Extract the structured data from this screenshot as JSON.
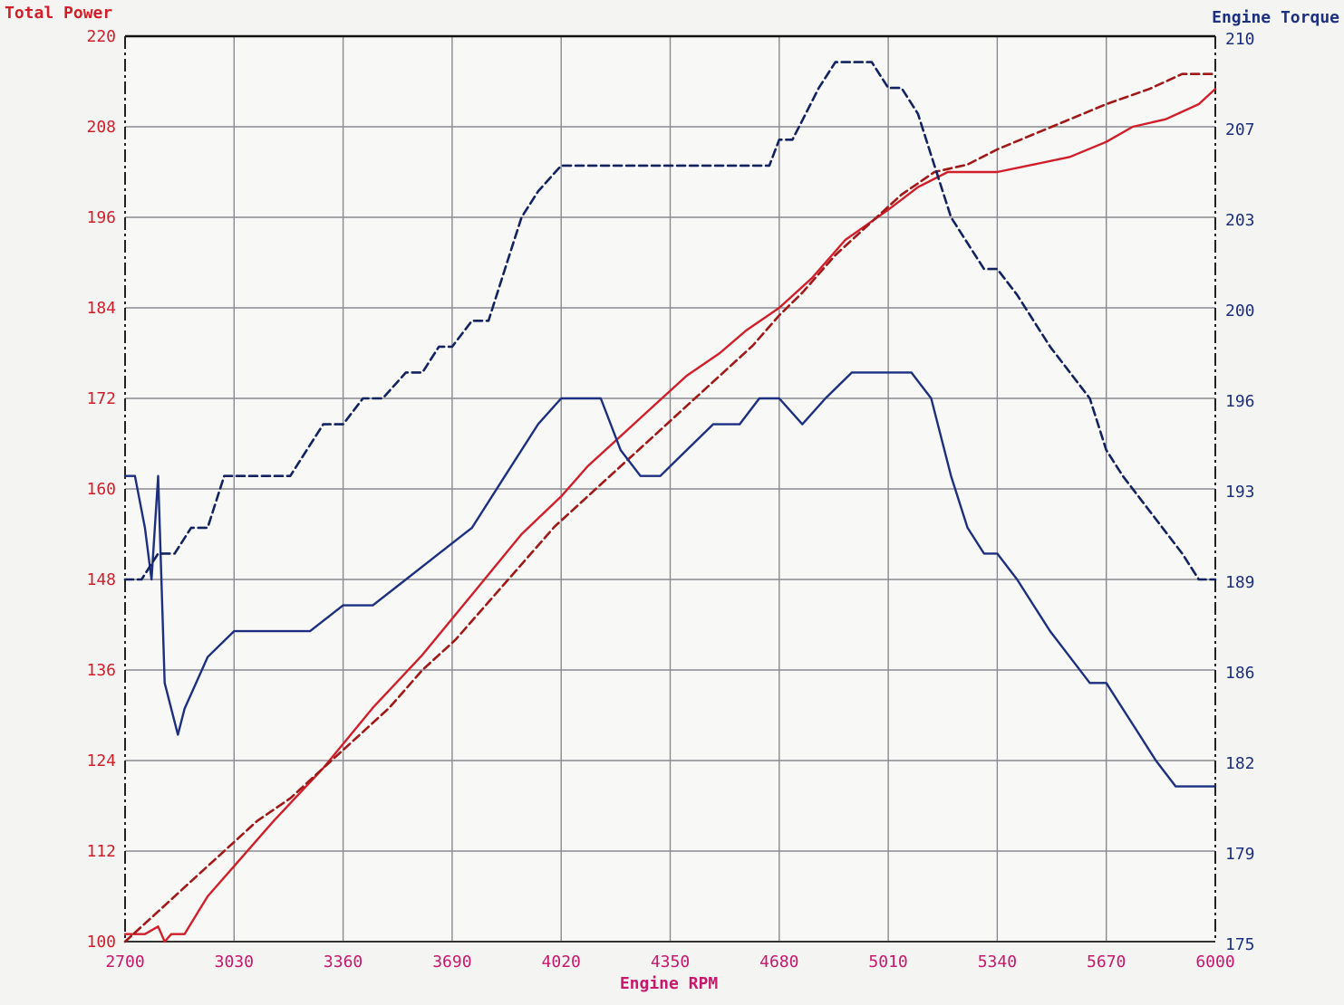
{
  "chart_data": {
    "type": "line",
    "title_left": "Total Power",
    "title_right": "Engine Torque",
    "xlabel": "Engine RPM",
    "x_ticks": [
      "2700",
      "3030",
      "3360",
      "3690",
      "4020",
      "4350",
      "4680",
      "5010",
      "5340",
      "5670",
      "6000"
    ],
    "y_left_ticks": [
      "220",
      "208",
      "196",
      "184",
      "172",
      "160",
      "148",
      "136",
      "124",
      "112",
      "100"
    ],
    "y_right_ticks": [
      "210",
      "207",
      "203",
      "200",
      "196",
      "193",
      "189",
      "186",
      "182",
      "179",
      "175"
    ],
    "xlim": [
      2700,
      6000
    ],
    "y_left_lim": [
      100,
      220
    ],
    "y_right_lim": [
      175,
      210
    ],
    "colors": {
      "power": "#d01e2a",
      "power_dashed": "#a01818",
      "torque": "#1c2f80",
      "torque_dashed": "#13235f",
      "grid": "#8a8a90",
      "background": "#f4f4f2"
    },
    "series": [
      {
        "axis": "left",
        "style": "solid",
        "color": "#d01e2a",
        "x": [
          2700,
          2760,
          2800,
          2820,
          2840,
          2880,
          2950,
          3030,
          3150,
          3300,
          3450,
          3600,
          3750,
          3900,
          4020,
          4100,
          4200,
          4300,
          4400,
          4500,
          4580,
          4680,
          4780,
          4880,
          5010,
          5100,
          5190,
          5250,
          5340,
          5450,
          5560,
          5670,
          5750,
          5850,
          5950,
          6000
        ],
        "y": [
          101,
          101,
          102,
          100,
          101,
          101,
          106,
          110,
          116,
          123,
          131,
          138,
          146,
          154,
          159,
          163,
          167,
          171,
          175,
          178,
          181,
          184,
          188,
          193,
          197,
          200,
          202,
          202,
          202,
          203,
          204,
          206,
          208,
          209,
          211,
          213
        ]
      },
      {
        "axis": "left",
        "style": "dashed",
        "color": "#a01818",
        "x": [
          2700,
          2800,
          2900,
          3000,
          3100,
          3200,
          3300,
          3400,
          3500,
          3600,
          3700,
          3800,
          3900,
          4000,
          4100,
          4200,
          4300,
          4400,
          4500,
          4600,
          4680,
          4750,
          4850,
          4950,
          5050,
          5150,
          5250,
          5340,
          5450,
          5560,
          5670,
          5800,
          5900,
          6000
        ],
        "y": [
          100,
          104,
          108,
          112,
          116,
          119,
          123,
          127,
          131,
          136,
          140,
          145,
          150,
          155,
          159,
          163,
          167,
          171,
          175,
          179,
          183,
          186,
          191,
          195,
          199,
          202,
          203,
          205,
          207,
          209,
          211,
          213,
          215,
          215
        ]
      },
      {
        "axis": "right",
        "style": "solid",
        "color": "#1c2f80",
        "x": [
          2700,
          2730,
          2760,
          2780,
          2800,
          2820,
          2840,
          2860,
          2880,
          2950,
          3030,
          3100,
          3180,
          3260,
          3360,
          3450,
          3550,
          3650,
          3750,
          3850,
          3950,
          4020,
          4080,
          4140,
          4200,
          4260,
          4320,
          4400,
          4480,
          4560,
          4620,
          4680,
          4750,
          4820,
          4900,
          4960,
          5010,
          5080,
          5140,
          5200,
          5250,
          5300,
          5340,
          5400,
          5450,
          5500,
          5560,
          5620,
          5670,
          5720,
          5770,
          5820,
          5880,
          5940,
          5980,
          6000
        ],
        "y": [
          193,
          193,
          191,
          189,
          193,
          185,
          184,
          183,
          184,
          186,
          187,
          187,
          187,
          187,
          188,
          188,
          189,
          190,
          191,
          193,
          195,
          196,
          196,
          196,
          194,
          193,
          193,
          194,
          195,
          195,
          196,
          196,
          195,
          196,
          197,
          197,
          197,
          197,
          196,
          193,
          191,
          190,
          190,
          189,
          188,
          187,
          186,
          185,
          185,
          184,
          183,
          182,
          181,
          181,
          181,
          181
        ]
      },
      {
        "axis": "right",
        "style": "dashed",
        "color": "#13235f",
        "x": [
          2700,
          2750,
          2800,
          2850,
          2900,
          2950,
          3000,
          3050,
          3100,
          3150,
          3200,
          3250,
          3300,
          3360,
          3420,
          3480,
          3550,
          3600,
          3650,
          3690,
          3750,
          3800,
          3850,
          3900,
          3950,
          4020,
          4080,
          4150,
          4200,
          4250,
          4300,
          4350,
          4400,
          4450,
          4500,
          4550,
          4600,
          4650,
          4680,
          4720,
          4760,
          4800,
          4850,
          4900,
          4960,
          5010,
          5050,
          5100,
          5150,
          5200,
          5250,
          5300,
          5340,
          5400,
          5450,
          5500,
          5560,
          5620,
          5670,
          5720,
          5780,
          5840,
          5900,
          5950,
          6000
        ],
        "y": [
          189,
          189,
          190,
          190,
          191,
          191,
          193,
          193,
          193,
          193,
          193,
          194,
          195,
          195,
          196,
          196,
          197,
          197,
          198,
          198,
          199,
          199,
          201,
          203,
          204,
          205,
          205,
          205,
          205,
          205,
          205,
          205,
          205,
          205,
          205,
          205,
          205,
          205,
          206,
          206,
          207,
          208,
          209,
          209,
          209,
          208,
          208,
          207,
          205,
          203,
          202,
          201,
          201,
          200,
          199,
          198,
          197,
          196,
          194,
          193,
          192,
          191,
          190,
          189,
          189
        ]
      }
    ]
  }
}
